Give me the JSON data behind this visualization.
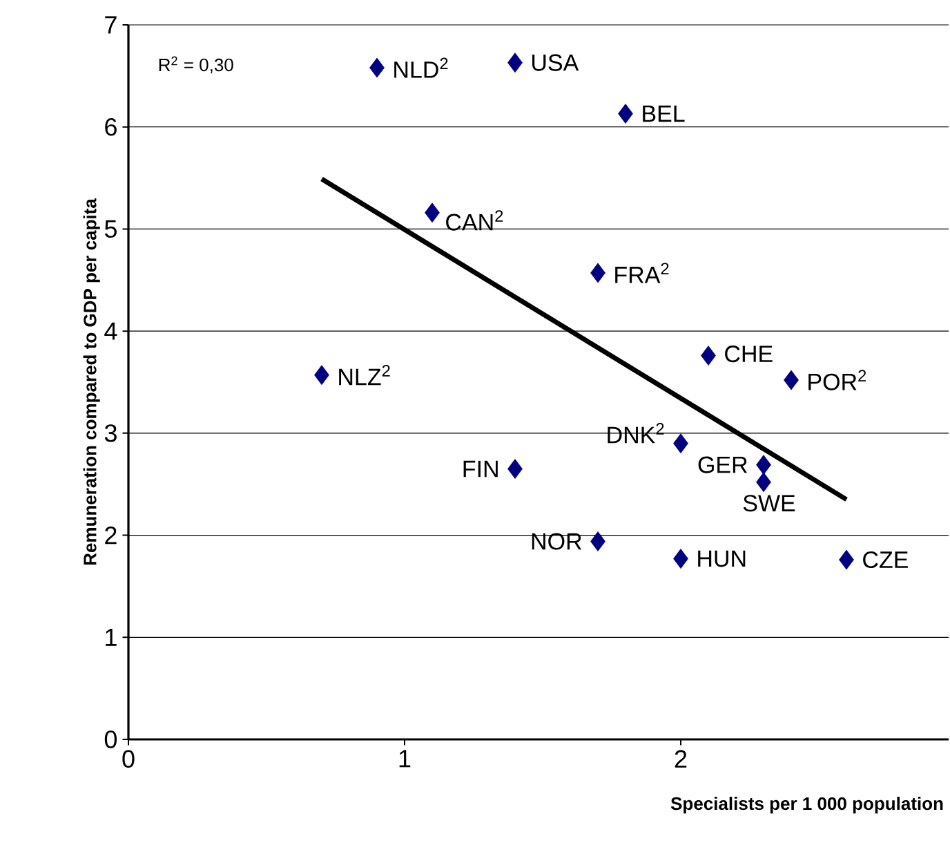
{
  "chart_data": {
    "type": "scatter",
    "xlabel": "Specialists per 1 000 population",
    "ylabel": "Remuneration compared to GDP per capita",
    "xlim": [
      0,
      2.97
    ],
    "xticks": [
      0,
      1,
      2
    ],
    "ylim": [
      0,
      7
    ],
    "yticks": [
      0,
      1,
      2,
      3,
      4,
      5,
      6,
      7
    ],
    "grid": "y",
    "series": [
      {
        "marker": "diamond",
        "color": "#000080",
        "x": [
          0.9,
          1.4,
          1.8,
          1.1,
          1.7,
          0.7,
          2.1,
          2.4,
          2.0,
          2.3,
          2.3,
          1.4,
          1.7,
          2.0,
          2.6
        ],
        "values": [
          6.58,
          6.63,
          6.13,
          5.16,
          4.57,
          3.57,
          3.76,
          3.52,
          2.9,
          2.69,
          2.52,
          2.65,
          1.94,
          1.77,
          1.76
        ]
      },
      {
        "type": "line",
        "color": "#000000",
        "x": [
          0.7,
          2.6
        ],
        "values": [
          5.49,
          2.35
        ]
      }
    ],
    "annotations": [
      "R$^{2}$ = 0,30",
      {
        "text": "NLD$^{2}$",
        "x": 0.9,
        "y": 6.58
      },
      {
        "text": "USA",
        "x": 1.4,
        "y": 6.63
      },
      {
        "text": "BEL",
        "x": 1.8,
        "y": 6.13
      },
      {
        "text": "CAN$^{2}$",
        "x": 1.1,
        "y": 5.16
      },
      {
        "text": "FRA$^{2}$",
        "x": 1.7,
        "y": 4.57
      },
      {
        "text": "NLZ$^{2}$",
        "x": 0.7,
        "y": 3.57
      },
      {
        "text": "CHE",
        "x": 2.1,
        "y": 3.76
      },
      {
        "text": "POR$^{2}$",
        "x": 2.4,
        "y": 3.52
      },
      {
        "text": "DNK$^{2}$",
        "x": 2.0,
        "y": 2.9
      },
      {
        "text": "GER",
        "x": 2.3,
        "y": 2.69
      },
      {
        "text": "SWE",
        "x": 2.3,
        "y": 2.52
      },
      {
        "text": "FIN",
        "x": 1.4,
        "y": 2.65
      },
      {
        "text": "NOR",
        "x": 1.7,
        "y": 1.94
      },
      {
        "text": "HUN",
        "x": 2.0,
        "y": 1.77
      },
      {
        "text": "CZE",
        "x": 2.6,
        "y": 1.76
      }
    ]
  }
}
